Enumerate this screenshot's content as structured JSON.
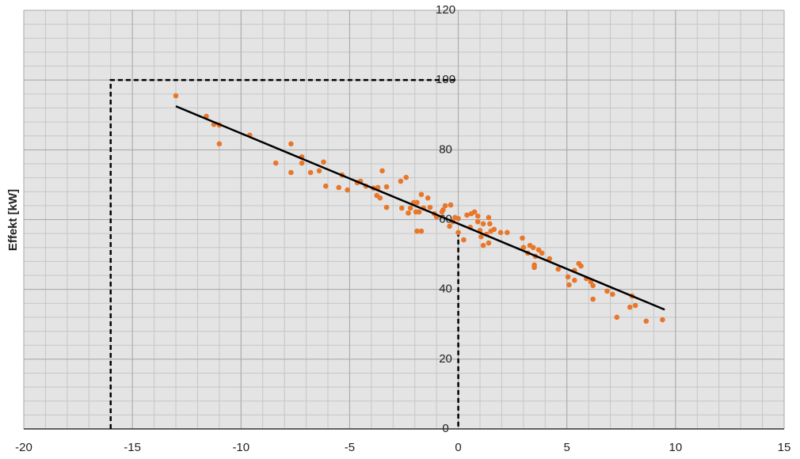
{
  "chart_data": {
    "type": "scatter",
    "y_label": "Effekt [kW]",
    "xlim": [
      -20,
      15
    ],
    "ylim": [
      0,
      120
    ],
    "xticks": [
      -20,
      -15,
      -10,
      -5,
      0,
      5,
      10,
      15
    ],
    "yticks": [
      0,
      20,
      40,
      60,
      80,
      100,
      120
    ],
    "x_minor_step": 1,
    "y_minor_step": 4,
    "grid": true,
    "series": [
      {
        "color": "#e8772a",
        "x": [
          -13.0,
          -11.6,
          -11.25,
          -11.0,
          -11.0,
          -9.6,
          -8.4,
          -7.7,
          -7.7,
          -7.2,
          -7.2,
          -6.8,
          -6.4,
          -6.2,
          -6.1,
          -5.5,
          -5.35,
          -5.1,
          -4.65,
          -4.5,
          -4.25,
          -3.9,
          -3.75,
          -3.7,
          -3.5,
          -3.6,
          -3.3,
          -3.3,
          -2.65,
          -2.4,
          -2.6,
          -2.3,
          -2.2,
          -2.05,
          -1.95,
          -1.9,
          -1.8,
          -1.7,
          -1.6,
          -1.4,
          -1.3,
          -1.1,
          -1.0,
          -1.9,
          -1.7,
          -0.75,
          -0.7,
          -0.6,
          -0.35,
          -0.4,
          -0.25,
          -0.15,
          0.0,
          0.0,
          0.25,
          0.4,
          0.55,
          0.6,
          0.75,
          0.9,
          0.9,
          1.0,
          1.05,
          1.15,
          1.15,
          1.3,
          1.4,
          1.45,
          1.5,
          1.4,
          1.65,
          1.95,
          2.25,
          2.95,
          3.0,
          3.2,
          3.3,
          3.45,
          3.55,
          3.5,
          3.5,
          3.7,
          3.85,
          4.2,
          4.6,
          5.05,
          5.1,
          5.35,
          5.35,
          5.55,
          5.65,
          5.9,
          6.1,
          6.2,
          6.2,
          6.85,
          7.1,
          7.3,
          7.9,
          8.0,
          8.15,
          8.65,
          9.4
        ],
        "values": [
          95.5,
          89.6,
          87.3,
          87.1,
          81.7,
          84.2,
          76.2,
          81.7,
          73.5,
          78.0,
          76.2,
          73.5,
          74.0,
          76.5,
          69.6,
          69.2,
          72.8,
          68.5,
          70.6,
          71.0,
          69.6,
          69.0,
          66.9,
          69.2,
          74.0,
          66.2,
          69.4,
          63.5,
          71.0,
          72.1,
          63.3,
          61.9,
          63.3,
          64.9,
          62.2,
          64.9,
          62.2,
          67.2,
          63.3,
          66.2,
          63.5,
          61.7,
          60.8,
          56.7,
          56.7,
          62.2,
          62.8,
          64.0,
          64.2,
          58.1,
          59.4,
          60.6,
          60.3,
          56.3,
          54.2,
          61.3,
          57.8,
          61.7,
          62.2,
          59.4,
          61.0,
          56.9,
          55.1,
          52.6,
          58.8,
          55.8,
          53.3,
          58.8,
          56.7,
          60.6,
          57.2,
          56.3,
          56.3,
          54.7,
          52.0,
          50.4,
          52.6,
          52.0,
          49.5,
          46.3,
          47.0,
          51.3,
          50.4,
          48.8,
          45.8,
          43.6,
          41.3,
          42.6,
          45.4,
          47.4,
          46.7,
          43.1,
          42.2,
          41.1,
          37.2,
          39.5,
          38.6,
          32.0,
          34.9,
          38.1,
          35.4,
          30.9,
          31.3
        ]
      }
    ],
    "trendline": {
      "color": "#000000",
      "x": [
        -13.0,
        9.5
      ],
      "y": [
        92.5,
        34.2
      ]
    },
    "guides": {
      "color": "#000000",
      "x": [
        -16,
        -16,
        0,
        null,
        0,
        0
      ],
      "y": [
        0,
        100,
        100,
        null,
        56.5,
        0
      ]
    }
  }
}
